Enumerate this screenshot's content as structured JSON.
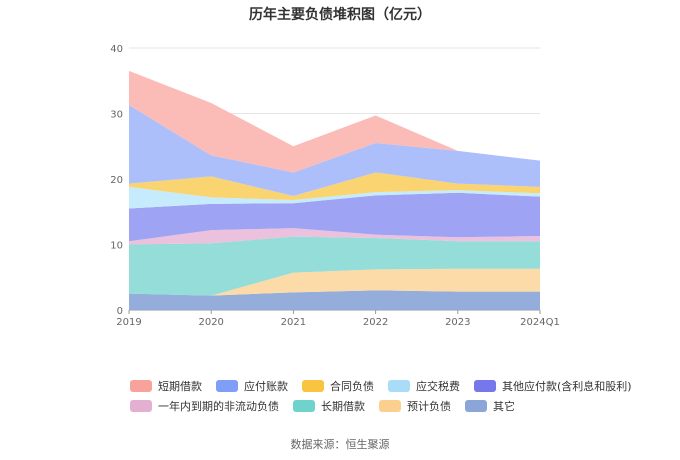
{
  "chart_data": {
    "type": "area",
    "stacked": true,
    "title": "历年主要负债堆积图（亿元）",
    "x": [
      "2019",
      "2020",
      "2021",
      "2022",
      "2023",
      "2024Q1"
    ],
    "ylim": [
      0,
      40
    ],
    "yticks": [
      0,
      10,
      20,
      30,
      40
    ],
    "grid": true,
    "legend_position": "bottom",
    "series": [
      {
        "name": "其它",
        "color": "#8fa9d8",
        "values": [
          2.5,
          2.2,
          2.7,
          3.0,
          2.8,
          2.8
        ]
      },
      {
        "name": "预计负债",
        "color": "#fcd9a4",
        "values": [
          0.0,
          0.0,
          3.0,
          3.2,
          3.5,
          3.5
        ]
      },
      {
        "name": "长期借款",
        "color": "#8edbd6",
        "values": [
          7.5,
          8.0,
          5.5,
          4.8,
          4.2,
          4.2
        ]
      },
      {
        "name": "一年内到期的非流动负债",
        "color": "#ebbedc",
        "values": [
          0.5,
          2.0,
          1.3,
          0.5,
          0.6,
          0.8
        ]
      },
      {
        "name": "其他应付款(含利息和股利)",
        "color": "#9a9ef3",
        "values": [
          5.0,
          4.0,
          3.8,
          6.0,
          6.8,
          6.0
        ]
      },
      {
        "name": "应交税费",
        "color": "#c2eafd",
        "values": [
          3.3,
          1.0,
          0.5,
          0.5,
          0.4,
          0.5
        ]
      },
      {
        "name": "合同负债",
        "color": "#fbd26a",
        "values": [
          0.5,
          3.2,
          0.6,
          3.0,
          1.0,
          1.0
        ]
      },
      {
        "name": "应付账款",
        "color": "#a9bcfa",
        "values": [
          12.0,
          3.2,
          3.6,
          4.5,
          5.0,
          4.0
        ]
      },
      {
        "name": "短期借款",
        "color": "#fbb8b3",
        "values": [
          5.2,
          8.0,
          4.0,
          4.2,
          0.0,
          0.0
        ]
      }
    ],
    "source": "数据来源：恒生聚源"
  }
}
